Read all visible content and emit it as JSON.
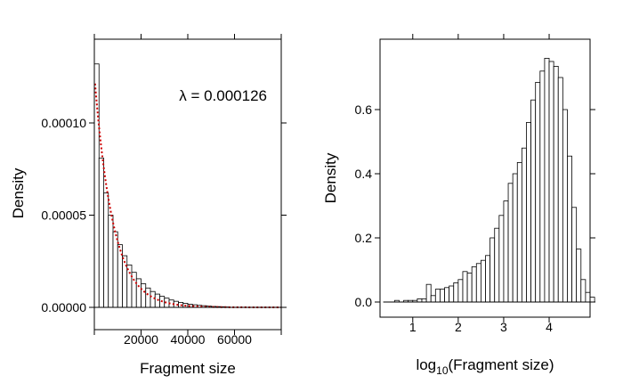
{
  "chart_data": [
    {
      "type": "bar",
      "subtype": "histogram",
      "xlabel": "Fragment size",
      "ylabel": "Density",
      "xlim": [
        0,
        80000
      ],
      "ylim": [
        0,
        0.000135
      ],
      "x_ticks": [
        20000,
        40000,
        60000
      ],
      "x_tick_labels": [
        "20000",
        "40000",
        "60000"
      ],
      "y_ticks": [
        0,
        5e-05,
        0.0001
      ],
      "y_tick_labels": [
        "0.00000",
        "0.00005",
        "0.00010"
      ],
      "bin_width": 2000,
      "bin_start": 0,
      "values": [
        0.000132,
        8.1e-05,
        6.2e-05,
        5e-05,
        4.1e-05,
        3.4e-05,
        2.8e-05,
        2.3e-05,
        1.9e-05,
        1.55e-05,
        1.28e-05,
        1.05e-05,
        8.6e-06,
        7.2e-06,
        6e-06,
        5e-06,
        4e-06,
        3.3e-06,
        2.7e-06,
        2.2e-06,
        1.7e-06,
        1.4e-06,
        1.1e-06,
        9e-07,
        7e-07,
        5e-07,
        4e-07,
        3e-07,
        2e-07
      ],
      "fitted_curve": {
        "type": "exponential",
        "rate": 0.000126,
        "color": "#cc0000",
        "style": "dotted"
      },
      "annotation": {
        "symbol": "λ",
        "text": " = 0.000126"
      },
      "grid": false
    },
    {
      "type": "bar",
      "subtype": "histogram",
      "xlabel_prefix": "log",
      "xlabel_subscript": "10",
      "xlabel_suffix": "(Fragment size)",
      "ylabel": "Density",
      "xlim": [
        0.28,
        4.9
      ],
      "ylim": [
        -0.045,
        0.8
      ],
      "x_ticks": [
        1,
        2,
        3,
        4
      ],
      "x_tick_labels": [
        "1",
        "2",
        "3",
        "4"
      ],
      "y_ticks": [
        0,
        0.2,
        0.4,
        0.6
      ],
      "y_tick_labels": [
        "0.0",
        "0.2",
        "0.4",
        "0.6"
      ],
      "bin_width": 0.1,
      "bin_start": 0.6,
      "values": [
        0.005,
        0,
        0.005,
        0.005,
        0.005,
        0.01,
        0.01,
        0.055,
        0.02,
        0.04,
        0.04,
        0.045,
        0.05,
        0.06,
        0.07,
        0.095,
        0.09,
        0.11,
        0.12,
        0.13,
        0.145,
        0.2,
        0.23,
        0.27,
        0.315,
        0.37,
        0.4,
        0.435,
        0.48,
        0.56,
        0.63,
        0.685,
        0.72,
        0.76,
        0.75,
        0.735,
        0.7,
        0.6,
        0.455,
        0.295,
        0.165,
        0.07,
        0.03,
        0.015
      ],
      "grid": false
    }
  ]
}
